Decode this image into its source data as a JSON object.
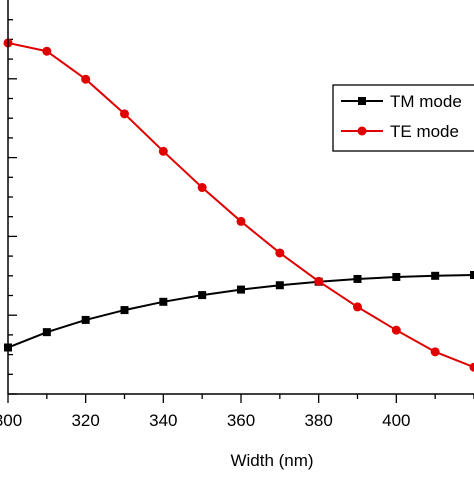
{
  "chart_data": {
    "type": "line",
    "xlabel": "Width (nm)",
    "ylabel": "",
    "xlim": [
      300,
      420
    ],
    "ylim": [
      0,
      1
    ],
    "x_ticks": [
      300,
      320,
      340,
      360,
      380,
      400
    ],
    "x_tick_labels": [
      "300",
      "320",
      "340",
      "360",
      "380",
      "400"
    ],
    "grid": false,
    "legend_position": "top-right",
    "x": [
      300,
      310,
      320,
      330,
      340,
      350,
      360,
      370,
      380,
      390,
      400,
      410,
      420
    ],
    "series": [
      {
        "name": "TM mode",
        "color": "#000000",
        "marker": "square",
        "values": [
          0.118,
          0.157,
          0.188,
          0.213,
          0.234,
          0.251,
          0.265,
          0.276,
          0.285,
          0.292,
          0.297,
          0.3,
          0.302
        ]
      },
      {
        "name": "TE mode",
        "color": "#e00000",
        "marker": "circle",
        "values": [
          0.891,
          0.87,
          0.799,
          0.711,
          0.616,
          0.524,
          0.438,
          0.358,
          0.286,
          0.221,
          0.162,
          0.107,
          0.068
        ]
      }
    ]
  }
}
